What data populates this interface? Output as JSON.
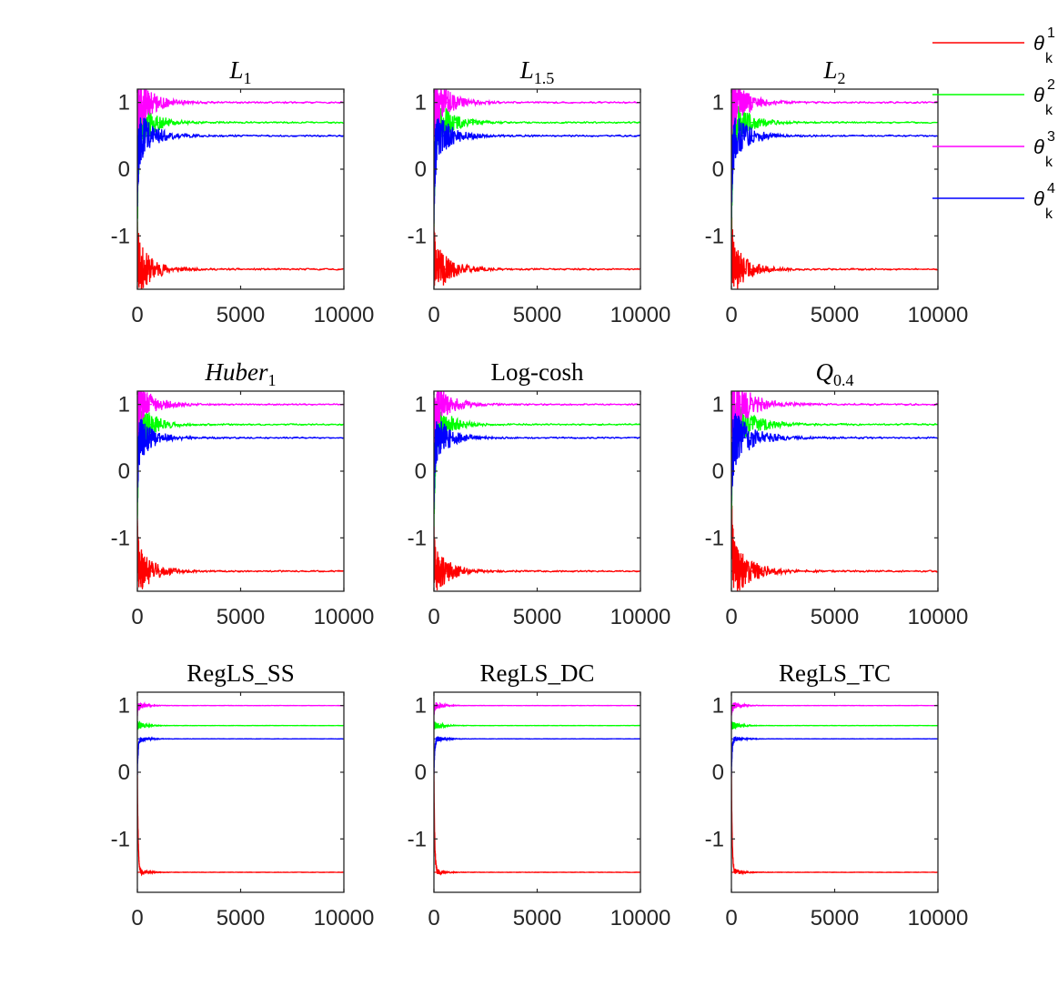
{
  "colors": {
    "theta1": "#ff0000",
    "theta2": "#00ff00",
    "theta3": "#ff00ff",
    "theta4": "#0000ff",
    "axis": "#262626"
  },
  "legend": {
    "position": "top-right",
    "entries": [
      {
        "symbol": "θ",
        "sub": "k",
        "sup": "1",
        "color": "#ff0000"
      },
      {
        "symbol": "θ",
        "sub": "k",
        "sup": "2",
        "color": "#00ff00"
      },
      {
        "symbol": "θ",
        "sub": "k",
        "sup": "3",
        "color": "#ff00ff"
      },
      {
        "symbol": "θ",
        "sub": "k",
        "sup": "4",
        "color": "#0000ff"
      }
    ]
  },
  "chart_data": [
    {
      "type": "line",
      "title": "L",
      "title_sub": "1",
      "title_italic": true,
      "xlim": [
        0,
        10000
      ],
      "ylim": [
        -1.8,
        1.2
      ],
      "xticks": [
        "0",
        "5000",
        "10000"
      ],
      "yticks": [
        "1",
        "0",
        "-1"
      ],
      "grid": false,
      "noise": 1.0,
      "settle": 2500,
      "series": [
        {
          "color": "#ff0000",
          "true_value": -1.5,
          "start": -1.1,
          "final": -1.5
        },
        {
          "color": "#00ff00",
          "true_value": 0.7,
          "start": -0.6,
          "final": 0.7
        },
        {
          "color": "#ff00ff",
          "true_value": 1.0,
          "start": 0.7,
          "final": 1.0
        },
        {
          "color": "#0000ff",
          "true_value": 0.5,
          "start": -0.2,
          "final": 0.5
        }
      ]
    },
    {
      "type": "line",
      "title": "L",
      "title_sub": "1.5",
      "title_italic": true,
      "xlim": [
        0,
        10000
      ],
      "ylim": [
        -1.8,
        1.2
      ],
      "xticks": [
        "0",
        "5000",
        "10000"
      ],
      "yticks": [
        "1",
        "0",
        "-1"
      ],
      "grid": false,
      "noise": 1.0,
      "settle": 2500,
      "series": [
        {
          "color": "#ff0000",
          "true_value": -1.5,
          "start": -1.2,
          "final": -1.5
        },
        {
          "color": "#00ff00",
          "true_value": 0.7,
          "start": -0.5,
          "final": 0.7
        },
        {
          "color": "#ff00ff",
          "true_value": 1.0,
          "start": 0.8,
          "final": 1.0
        },
        {
          "color": "#0000ff",
          "true_value": 0.5,
          "start": -0.4,
          "final": 0.5
        }
      ]
    },
    {
      "type": "line",
      "title": "L",
      "title_sub": "2",
      "title_italic": true,
      "xlim": [
        0,
        10000
      ],
      "ylim": [
        -1.8,
        1.2
      ],
      "xticks": [
        "0",
        "5000",
        "10000"
      ],
      "yticks": [
        "1",
        "0",
        "-1"
      ],
      "grid": false,
      "noise": 1.0,
      "settle": 2500,
      "series": [
        {
          "color": "#ff0000",
          "true_value": -1.5,
          "start": -1.0,
          "final": -1.5
        },
        {
          "color": "#00ff00",
          "true_value": 0.7,
          "start": -0.6,
          "final": 0.7
        },
        {
          "color": "#ff00ff",
          "true_value": 1.0,
          "start": 0.9,
          "final": 1.0
        },
        {
          "color": "#0000ff",
          "true_value": 0.5,
          "start": -0.3,
          "final": 0.5
        }
      ]
    },
    {
      "type": "line",
      "title": "Huber",
      "title_sub": "1",
      "title_italic": true,
      "xlim": [
        0,
        10000
      ],
      "ylim": [
        -1.8,
        1.2
      ],
      "xticks": [
        "0",
        "5000",
        "10000"
      ],
      "yticks": [
        "1",
        "0",
        "-1"
      ],
      "grid": false,
      "noise": 0.9,
      "settle": 2500,
      "series": [
        {
          "color": "#ff0000",
          "true_value": -1.5,
          "start": -1.1,
          "final": -1.5
        },
        {
          "color": "#00ff00",
          "true_value": 0.7,
          "start": -0.4,
          "final": 0.7
        },
        {
          "color": "#ff00ff",
          "true_value": 1.0,
          "start": 0.8,
          "final": 1.0
        },
        {
          "color": "#0000ff",
          "true_value": 0.5,
          "start": -0.1,
          "final": 0.5
        }
      ]
    },
    {
      "type": "line",
      "title": "Log-cosh",
      "title_sub": "",
      "title_italic": false,
      "xlim": [
        0,
        10000
      ],
      "ylim": [
        -1.8,
        1.2
      ],
      "xticks": [
        "0",
        "5000",
        "10000"
      ],
      "yticks": [
        "1",
        "0",
        "-1"
      ],
      "grid": false,
      "noise": 0.9,
      "settle": 2500,
      "series": [
        {
          "color": "#ff0000",
          "true_value": -1.5,
          "start": -1.2,
          "final": -1.5
        },
        {
          "color": "#00ff00",
          "true_value": 0.7,
          "start": -0.6,
          "final": 0.7
        },
        {
          "color": "#ff00ff",
          "true_value": 1.0,
          "start": 0.6,
          "final": 1.0
        },
        {
          "color": "#0000ff",
          "true_value": 0.5,
          "start": -0.2,
          "final": 0.5
        }
      ]
    },
    {
      "type": "line",
      "title": "Q",
      "title_sub": "0.4",
      "title_italic": true,
      "xlim": [
        0,
        10000
      ],
      "ylim": [
        -1.8,
        1.2
      ],
      "xticks": [
        "0",
        "5000",
        "10000"
      ],
      "yticks": [
        "1",
        "0",
        "-1"
      ],
      "grid": false,
      "noise": 1.1,
      "settle": 3000,
      "series": [
        {
          "color": "#ff0000",
          "true_value": -1.5,
          "start": -0.7,
          "final": -1.5
        },
        {
          "color": "#00ff00",
          "true_value": 0.7,
          "start": -0.3,
          "final": 0.7
        },
        {
          "color": "#ff00ff",
          "true_value": 1.0,
          "start": 0.8,
          "final": 1.0
        },
        {
          "color": "#0000ff",
          "true_value": 0.5,
          "start": 0.0,
          "final": 0.5
        }
      ]
    },
    {
      "type": "line",
      "title": "RegLS_SS",
      "title_sub": "",
      "title_italic": false,
      "xlim": [
        0,
        10000
      ],
      "ylim": [
        -1.8,
        1.2
      ],
      "xticks": [
        "0",
        "5000",
        "10000"
      ],
      "yticks": [
        "1",
        "0",
        "-1"
      ],
      "grid": false,
      "noise": 0.15,
      "settle": 1500,
      "series": [
        {
          "color": "#ff0000",
          "true_value": -1.5,
          "start": 0.0,
          "final": -1.5
        },
        {
          "color": "#00ff00",
          "true_value": 0.7,
          "start": 0.7,
          "final": 0.7
        },
        {
          "color": "#ff00ff",
          "true_value": 1.0,
          "start": 0.9,
          "final": 1.0
        },
        {
          "color": "#0000ff",
          "true_value": 0.5,
          "start": 0.0,
          "final": 0.5
        }
      ]
    },
    {
      "type": "line",
      "title": "RegLS_DC",
      "title_sub": "",
      "title_italic": false,
      "xlim": [
        0,
        10000
      ],
      "ylim": [
        -1.8,
        1.2
      ],
      "xticks": [
        "0",
        "5000",
        "10000"
      ],
      "yticks": [
        "1",
        "0",
        "-1"
      ],
      "grid": false,
      "noise": 0.15,
      "settle": 1500,
      "series": [
        {
          "color": "#ff0000",
          "true_value": -1.5,
          "start": 0.0,
          "final": -1.5
        },
        {
          "color": "#00ff00",
          "true_value": 0.7,
          "start": 0.7,
          "final": 0.7
        },
        {
          "color": "#ff00ff",
          "true_value": 1.0,
          "start": 0.9,
          "final": 1.0
        },
        {
          "color": "#0000ff",
          "true_value": 0.5,
          "start": 0.0,
          "final": 0.5
        }
      ]
    },
    {
      "type": "line",
      "title": "RegLS_TC",
      "title_sub": "",
      "title_italic": false,
      "xlim": [
        0,
        10000
      ],
      "ylim": [
        -1.8,
        1.2
      ],
      "xticks": [
        "0",
        "5000",
        "10000"
      ],
      "yticks": [
        "1",
        "0",
        "-1"
      ],
      "grid": false,
      "noise": 0.15,
      "settle": 1500,
      "series": [
        {
          "color": "#ff0000",
          "true_value": -1.5,
          "start": 0.0,
          "final": -1.5
        },
        {
          "color": "#00ff00",
          "true_value": 0.7,
          "start": 0.7,
          "final": 0.7
        },
        {
          "color": "#ff00ff",
          "true_value": 1.0,
          "start": 0.9,
          "final": 1.0
        },
        {
          "color": "#0000ff",
          "true_value": 0.5,
          "start": 0.0,
          "final": 0.5
        }
      ]
    }
  ]
}
